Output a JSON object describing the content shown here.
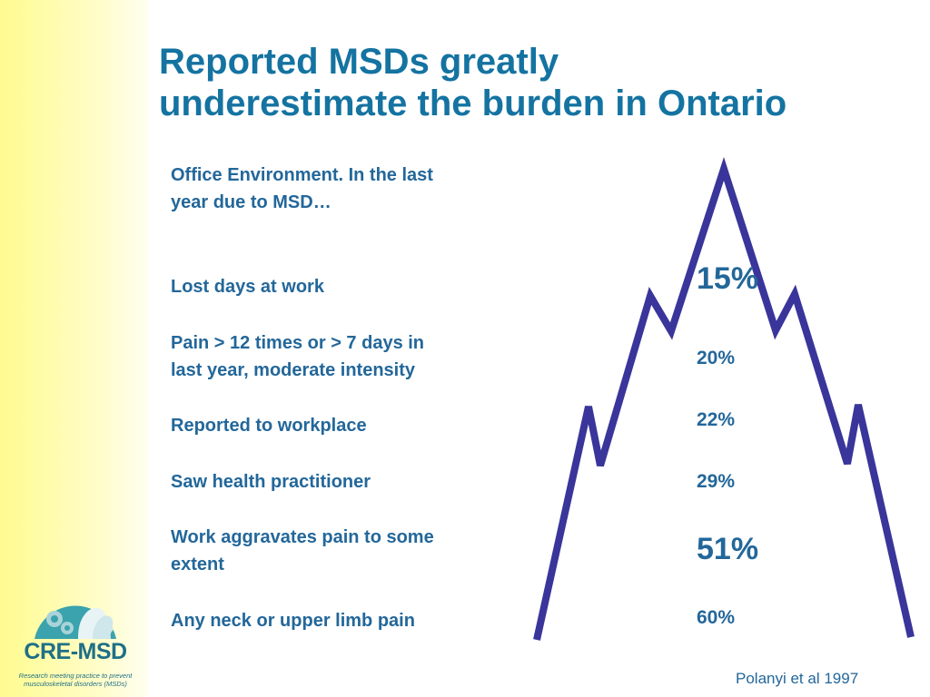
{
  "title": {
    "line1": "Reported MSDs greatly",
    "line2": "underestimate the burden in Ontario"
  },
  "intro": {
    "line1": "Office Environment. In the last",
    "line2": "year due to MSD…"
  },
  "items": [
    {
      "label_line1": "Lost days at work",
      "label_line2": "",
      "percent": "15%"
    },
    {
      "label_line1": "Pain > 12 times or > 7 days in",
      "label_line2": "last year, moderate intensity",
      "percent": "20%"
    },
    {
      "label_line1": "Reported to workplace",
      "label_line2": "",
      "percent": "22%"
    },
    {
      "label_line1": "Saw health practitioner",
      "label_line2": "",
      "percent": "29%"
    },
    {
      "label_line1": "Work aggravates pain to some",
      "label_line2": "extent",
      "percent": "51%"
    },
    {
      "label_line1": "Any neck or upper limb pain",
      "label_line2": "",
      "percent": "60%"
    }
  ],
  "citation": "Polanyi et al 1997",
  "logo": {
    "name": "CRE-MSD",
    "tagline_line1": "Research meeting practice to prevent",
    "tagline_line2": "musculoskeletal disorders (MSDs)"
  },
  "colors": {
    "title": "#1473a1",
    "text": "#23679a",
    "mountain_line": "#39359a",
    "sidebar": "#fffb90"
  },
  "icons": [
    "mountain-line-graphic",
    "gear-icon",
    "head-profile-icon"
  ]
}
